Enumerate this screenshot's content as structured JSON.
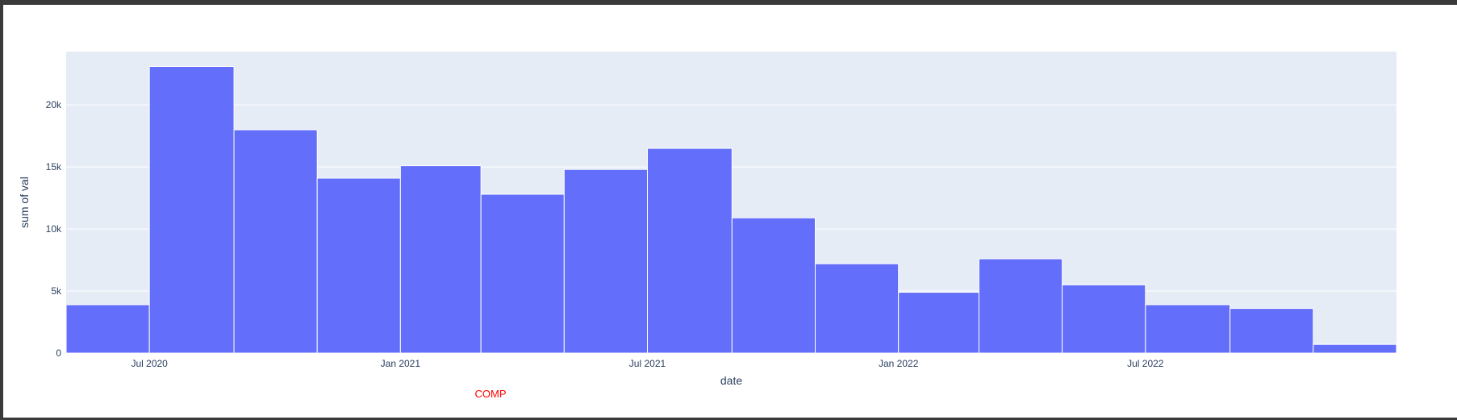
{
  "colors": {
    "page_border": "#3a3a3a",
    "paper_bg": "#ffffff",
    "plot_bg": "#e5ecf6",
    "bar_fill": "#636efa",
    "text": "#2a3f5f",
    "annotation": "#ff0000"
  },
  "annotation": {
    "text": "COMP"
  },
  "chart_data": {
    "type": "bar",
    "title": "",
    "xlabel": "date",
    "ylabel": "sum of val",
    "x_axis_type": "date",
    "bin_months": 2,
    "bins": [
      {
        "start": "2020-05-01",
        "end": "2020-07-01",
        "value": 3900
      },
      {
        "start": "2020-07-01",
        "end": "2020-09-01",
        "value": 23100
      },
      {
        "start": "2020-09-01",
        "end": "2020-11-01",
        "value": 18000
      },
      {
        "start": "2020-11-01",
        "end": "2021-01-01",
        "value": 14100
      },
      {
        "start": "2021-01-01",
        "end": "2021-03-01",
        "value": 15100
      },
      {
        "start": "2021-03-01",
        "end": "2021-05-01",
        "value": 12800
      },
      {
        "start": "2021-05-01",
        "end": "2021-07-01",
        "value": 14800
      },
      {
        "start": "2021-07-01",
        "end": "2021-09-01",
        "value": 16500
      },
      {
        "start": "2021-09-01",
        "end": "2021-11-01",
        "value": 10900
      },
      {
        "start": "2021-11-01",
        "end": "2022-01-01",
        "value": 7200
      },
      {
        "start": "2022-01-01",
        "end": "2022-03-01",
        "value": 4900
      },
      {
        "start": "2022-03-01",
        "end": "2022-05-01",
        "value": 7600
      },
      {
        "start": "2022-05-01",
        "end": "2022-07-01",
        "value": 5500
      },
      {
        "start": "2022-07-01",
        "end": "2022-09-01",
        "value": 3900
      },
      {
        "start": "2022-09-01",
        "end": "2022-11-01",
        "value": 3600
      },
      {
        "start": "2022-11-01",
        "end": "2023-01-01",
        "value": 700
      }
    ],
    "xlim": [
      "2020-05-01",
      "2023-01-01"
    ],
    "ylim": [
      0,
      24300
    ],
    "y_ticks": [
      {
        "value": 0,
        "label": "0"
      },
      {
        "value": 5000,
        "label": "5k"
      },
      {
        "value": 10000,
        "label": "10k"
      },
      {
        "value": 15000,
        "label": "15k"
      },
      {
        "value": 20000,
        "label": "20k"
      }
    ],
    "x_ticks": [
      {
        "value": "2020-07-01",
        "label": "Jul 2020"
      },
      {
        "value": "2021-01-01",
        "label": "Jan 2021"
      },
      {
        "value": "2021-07-01",
        "label": "Jul 2021"
      },
      {
        "value": "2022-01-01",
        "label": "Jan 2022"
      },
      {
        "value": "2022-07-01",
        "label": "Jul 2022"
      }
    ],
    "grid": true,
    "legend": "none"
  }
}
